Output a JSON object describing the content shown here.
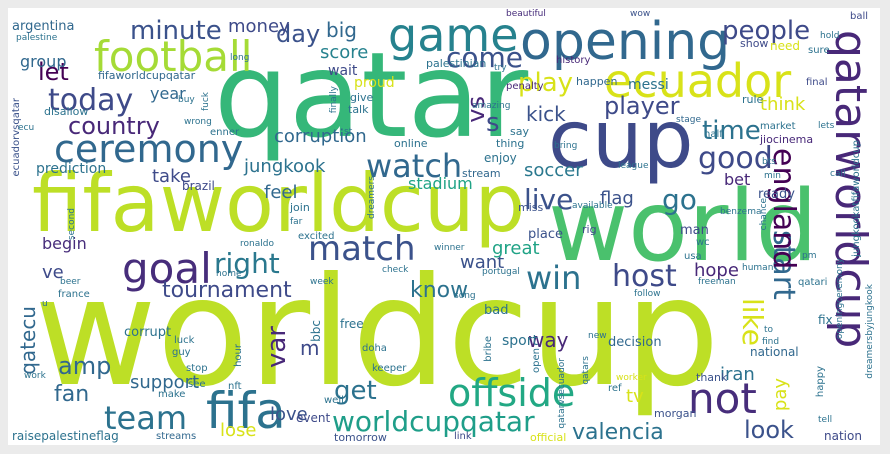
{
  "cloud": {
    "words": [
      {
        "text": "worldcup",
        "color": "#bddf26"
      },
      {
        "text": "qatar",
        "color": "#35b779"
      },
      {
        "text": "fifaworldcup",
        "color": "#bddf26"
      },
      {
        "text": "world",
        "color": "#4ac16d"
      },
      {
        "text": "cup",
        "color": "#3e4a89"
      },
      {
        "text": "qatarworldcup",
        "color": "#482878"
      },
      {
        "text": "opening",
        "color": "#31688e"
      },
      {
        "text": "game",
        "color": "#26828e"
      },
      {
        "text": "ecuador",
        "color": "#d8e219"
      },
      {
        "text": "football",
        "color": "#a5db36"
      },
      {
        "text": "ceremony",
        "color": "#31688e"
      },
      {
        "text": "fifa",
        "color": "#2c728e"
      },
      {
        "text": "goal",
        "color": "#472d7b"
      },
      {
        "text": "match",
        "color": "#3b528b"
      },
      {
        "text": "offside",
        "color": "#22a884"
      },
      {
        "text": "team",
        "color": "#2c728e"
      },
      {
        "text": "not",
        "color": "#472d7b"
      },
      {
        "text": "worldcupqatar",
        "color": "#1f9e89"
      },
      {
        "text": "watch",
        "color": "#31688e"
      },
      {
        "text": "live",
        "color": "#3b528b"
      },
      {
        "text": "win",
        "color": "#2c728e"
      },
      {
        "text": "host",
        "color": "#3e4a89"
      },
      {
        "text": "start",
        "color": "#31688e"
      },
      {
        "text": "england",
        "color": "#440154"
      },
      {
        "text": "today",
        "color": "#3e4a89"
      },
      {
        "text": "good",
        "color": "#3e4a89"
      },
      {
        "text": "right",
        "color": "#2a788e"
      },
      {
        "text": "go",
        "color": "#2c728e"
      },
      {
        "text": "var",
        "color": "#482878"
      },
      {
        "text": "player",
        "color": "#3e4a89"
      },
      {
        "text": "time",
        "color": "#2c728e"
      },
      {
        "text": "minute",
        "color": "#3b528b"
      },
      {
        "text": "country",
        "color": "#482878"
      },
      {
        "text": "people",
        "color": "#3e4a89"
      },
      {
        "text": "play",
        "color": "#d8e219"
      },
      {
        "text": "let",
        "color": "#440154"
      },
      {
        "text": "come",
        "color": "#3b528b"
      },
      {
        "text": "day",
        "color": "#3b528b"
      },
      {
        "text": "vs",
        "color": "#482878"
      },
      {
        "text": "s",
        "color": "#3e4a89"
      },
      {
        "text": "like",
        "color": "#d8e219"
      },
      {
        "text": "tournament",
        "color": "#3e4a89"
      },
      {
        "text": "know",
        "color": "#2c728e"
      },
      {
        "text": "get",
        "color": "#2c728e"
      },
      {
        "text": "amp",
        "color": "#31688e"
      },
      {
        "text": "fan",
        "color": "#31688e"
      },
      {
        "text": "valencia",
        "color": "#2c728e"
      },
      {
        "text": "look",
        "color": "#3b528b"
      },
      {
        "text": "stadium",
        "color": "#20a386"
      },
      {
        "text": "soccer",
        "color": "#2a788e"
      },
      {
        "text": "corruption",
        "color": "#31688e"
      },
      {
        "text": "jungkook",
        "color": "#2c728e"
      },
      {
        "text": "kick",
        "color": "#3b528b"
      },
      {
        "text": "score",
        "color": "#26828e"
      },
      {
        "text": "money",
        "color": "#3e4a89"
      },
      {
        "text": "big",
        "color": "#31688e"
      },
      {
        "text": "year",
        "color": "#31688e"
      },
      {
        "text": "take",
        "color": "#3e4a89"
      },
      {
        "text": "feel",
        "color": "#31688e"
      },
      {
        "text": "flag",
        "color": "#3b528b"
      },
      {
        "text": "bet",
        "color": "#482878"
      },
      {
        "text": "want",
        "color": "#3b528b"
      },
      {
        "text": "great",
        "color": "#20a386"
      },
      {
        "text": "hope",
        "color": "#482878"
      },
      {
        "text": "way",
        "color": "#482878"
      },
      {
        "text": "think",
        "color": "#d8e219"
      },
      {
        "text": "pay",
        "color": "#d8e219"
      },
      {
        "text": "iran",
        "color": "#2c728e"
      },
      {
        "text": "love",
        "color": "#3b528b"
      },
      {
        "text": "support",
        "color": "#31688e"
      },
      {
        "text": "lose",
        "color": "#d8e219"
      },
      {
        "text": "tv",
        "color": "#d8e219"
      },
      {
        "text": "group",
        "color": "#31688e"
      },
      {
        "text": "begin",
        "color": "#472d7b"
      },
      {
        "text": "ve",
        "color": "#3e4a89"
      },
      {
        "text": "m",
        "color": "#3e4a89"
      },
      {
        "text": "qatecu",
        "color": "#31688e"
      },
      {
        "text": "argentina",
        "color": "#31688e"
      },
      {
        "text": "wait",
        "color": "#3e4a89"
      },
      {
        "text": "proud",
        "color": "#d8e219"
      },
      {
        "text": "penalty",
        "color": "#482878"
      },
      {
        "text": "messi",
        "color": "#2c728e"
      },
      {
        "text": "happen",
        "color": "#31688e"
      },
      {
        "text": "history",
        "color": "#482878"
      },
      {
        "text": "palestinian",
        "color": "#2c728e"
      },
      {
        "text": "fifaworldcupqatar",
        "color": "#31688e"
      },
      {
        "text": "ecuadorvsqatar",
        "color": "#3b528b"
      },
      {
        "text": "prediction",
        "color": "#2c728e"
      },
      {
        "text": "enjoy",
        "color": "#2c728e"
      },
      {
        "text": "stream",
        "color": "#31688e"
      },
      {
        "text": "miss",
        "color": "#3b528b"
      },
      {
        "text": "brazil",
        "color": "#3e4a89"
      },
      {
        "text": "ready",
        "color": "#3b528b"
      },
      {
        "text": "corrupt",
        "color": "#2c728e"
      },
      {
        "text": "place",
        "color": "#3b528b"
      },
      {
        "text": "man",
        "color": "#3e4a89"
      },
      {
        "text": "rig",
        "color": "#3e4a89"
      },
      {
        "text": "usa",
        "color": "#2c728e"
      },
      {
        "text": "free",
        "color": "#2c728e"
      },
      {
        "text": "bad",
        "color": "#2c728e"
      },
      {
        "text": "decision",
        "color": "#31688e"
      },
      {
        "text": "national",
        "color": "#31688e"
      },
      {
        "text": "sport",
        "color": "#2c728e"
      },
      {
        "text": "thank",
        "color": "#3b528b"
      },
      {
        "text": "event",
        "color": "#3e4a89"
      },
      {
        "text": "tomorrow",
        "color": "#3b528b"
      },
      {
        "text": "nation",
        "color": "#3e4a89"
      },
      {
        "text": "raisepalestineflag",
        "color": "#2c728e"
      },
      {
        "text": "streams",
        "color": "#31688e"
      },
      {
        "text": "link",
        "color": "#3e4a89"
      },
      {
        "text": "official",
        "color": "#d8e219"
      },
      {
        "text": "morgan",
        "color": "#3b528b"
      },
      {
        "text": "ball",
        "color": "#3e4a89"
      },
      {
        "text": "beautiful",
        "color": "#472d7b"
      },
      {
        "text": "wow",
        "color": "#3b528b"
      },
      {
        "text": "show",
        "color": "#3e4a89"
      },
      {
        "text": "need",
        "color": "#d8e219"
      },
      {
        "text": "sure",
        "color": "#2c728e"
      },
      {
        "text": "final",
        "color": "#3e4a89"
      },
      {
        "text": "rule",
        "color": "#2c728e"
      },
      {
        "text": "stage",
        "color": "#31688e"
      },
      {
        "text": "half",
        "color": "#2c728e"
      },
      {
        "text": "market",
        "color": "#2c728e"
      },
      {
        "text": "jiocinema",
        "color": "#482878"
      },
      {
        "text": "league",
        "color": "#2c728e"
      },
      {
        "text": "bts",
        "color": "#2c728e"
      },
      {
        "text": "call",
        "color": "#2c728e"
      },
      {
        "text": "benzema",
        "color": "#2c728e"
      },
      {
        "text": "chance",
        "color": "#2c728e"
      },
      {
        "text": "wc",
        "color": "#2c728e"
      },
      {
        "text": "freeman",
        "color": "#2c728e"
      },
      {
        "text": "qatari",
        "color": "#2c728e"
      },
      {
        "text": "human",
        "color": "#2c728e"
      },
      {
        "text": "hour",
        "color": "#2c728e"
      },
      {
        "text": "bbc",
        "color": "#2c728e"
      },
      {
        "text": "doha",
        "color": "#2c728e"
      },
      {
        "text": "keeper",
        "color": "#2c728e"
      },
      {
        "text": "bribe",
        "color": "#2c728e"
      },
      {
        "text": "qatars",
        "color": "#2c728e"
      },
      {
        "text": "new",
        "color": "#2c728e"
      },
      {
        "text": "worker",
        "color": "#d8e219"
      },
      {
        "text": "ref",
        "color": "#2c728e"
      },
      {
        "text": "happy",
        "color": "#2c728e"
      },
      {
        "text": "fix",
        "color": "#2c728e"
      },
      {
        "text": "find",
        "color": "#2c728e"
      },
      {
        "text": "to",
        "color": "#2c728e"
      },
      {
        "text": "tell",
        "color": "#2c728e"
      },
      {
        "text": "luck",
        "color": "#2c728e"
      },
      {
        "text": "guy",
        "color": "#2c728e"
      },
      {
        "text": "stop",
        "color": "#2c728e"
      },
      {
        "text": "nft",
        "color": "#2c728e"
      },
      {
        "text": "work",
        "color": "#2c728e"
      },
      {
        "text": "see",
        "color": "#2c728e"
      },
      {
        "text": "make",
        "color": "#2c728e"
      },
      {
        "text": "well",
        "color": "#2c728e"
      },
      {
        "text": "song",
        "color": "#2c728e"
      },
      {
        "text": "follow",
        "color": "#2c728e"
      },
      {
        "text": "open",
        "color": "#2c728e"
      },
      {
        "text": "qatarvsecuador",
        "color": "#2c728e"
      },
      {
        "text": "jungkookatfifaworldcup",
        "color": "#2c728e"
      },
      {
        "text": "dreamersbyjungkook",
        "color": "#2c728e"
      },
      {
        "text": "openingceremony",
        "color": "#2c728e"
      },
      {
        "text": "lets",
        "color": "#2c728e"
      },
      {
        "text": "min",
        "color": "#2c728e"
      },
      {
        "text": "pm",
        "color": "#2c728e"
      },
      {
        "text": "hold",
        "color": "#2c728e"
      },
      {
        "text": "palestine",
        "color": "#2c728e"
      },
      {
        "text": "long",
        "color": "#2c728e"
      },
      {
        "text": "disallow",
        "color": "#2c728e"
      },
      {
        "text": "ecu",
        "color": "#2c728e"
      },
      {
        "text": "wrong",
        "color": "#2c728e"
      },
      {
        "text": "enner",
        "color": "#2c728e"
      },
      {
        "text": "give",
        "color": "#2c728e"
      },
      {
        "text": "talk",
        "color": "#2c728e"
      },
      {
        "text": "online",
        "color": "#2c728e"
      },
      {
        "text": "say",
        "color": "#2c728e"
      },
      {
        "text": "thing",
        "color": "#2c728e"
      },
      {
        "text": "bring",
        "color": "#2c728e"
      },
      {
        "text": "amazing",
        "color": "#2c728e"
      },
      {
        "text": "try",
        "color": "#2c728e"
      },
      {
        "text": "buy",
        "color": "#2c728e"
      },
      {
        "text": "fuck",
        "color": "#2c728e"
      },
      {
        "text": "finally",
        "color": "#2c728e"
      },
      {
        "text": "second",
        "color": "#2c728e"
      },
      {
        "text": "dreamers",
        "color": "#2c728e"
      },
      {
        "text": "available",
        "color": "#2c728e"
      },
      {
        "text": "join",
        "color": "#2c728e"
      },
      {
        "text": "far",
        "color": "#2c728e"
      },
      {
        "text": "excited",
        "color": "#2c728e"
      },
      {
        "text": "ronaldo",
        "color": "#2c728e"
      },
      {
        "text": "winner",
        "color": "#2c728e"
      },
      {
        "text": "check",
        "color": "#2c728e"
      },
      {
        "text": "portugal",
        "color": "#2c728e"
      },
      {
        "text": "home",
        "color": "#2c728e"
      },
      {
        "text": "beer",
        "color": "#2c728e"
      },
      {
        "text": "france",
        "color": "#2c728e"
      },
      {
        "text": "week",
        "color": "#2c728e"
      },
      {
        "text": "u",
        "color": "#2c728e"
      },
      {
        "text": "st",
        "color": "#2c728e"
      }
    ]
  }
}
